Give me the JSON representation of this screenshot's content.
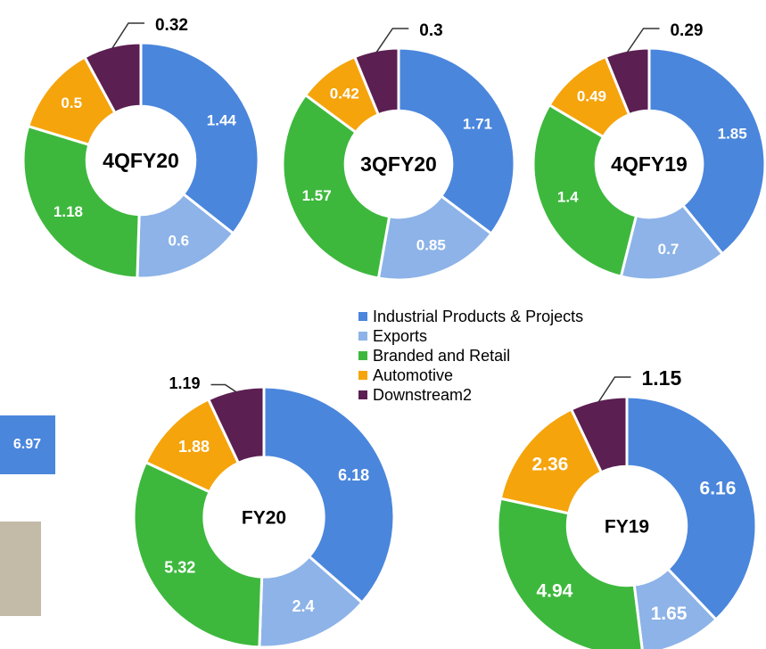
{
  "chart_data": [
    {
      "type": "pie",
      "title": "4QFY20",
      "categories": [
        "Industrial Products & Projects",
        "Exports",
        "Branded and Retail",
        "Automotive",
        "Downstream2"
      ],
      "values": [
        1.44,
        0.6,
        1.18,
        0.5,
        0.32
      ],
      "colors": [
        "#4a86dc",
        "#8db3e8",
        "#3db83d",
        "#f5a40c",
        "#5b1f52"
      ]
    },
    {
      "type": "pie",
      "title": "3QFY20",
      "categories": [
        "Industrial Products & Projects",
        "Exports",
        "Branded and Retail",
        "Automotive",
        "Downstream2"
      ],
      "values": [
        1.71,
        0.85,
        1.57,
        0.42,
        0.3
      ],
      "colors": [
        "#4a86dc",
        "#8db3e8",
        "#3db83d",
        "#f5a40c",
        "#5b1f52"
      ]
    },
    {
      "type": "pie",
      "title": "4QFY19",
      "categories": [
        "Industrial Products & Projects",
        "Exports",
        "Branded and Retail",
        "Automotive",
        "Downstream2"
      ],
      "values": [
        1.85,
        0.7,
        1.4,
        0.49,
        0.29
      ],
      "colors": [
        "#4a86dc",
        "#8db3e8",
        "#3db83d",
        "#f5a40c",
        "#5b1f52"
      ]
    },
    {
      "type": "pie",
      "title": "FY20",
      "categories": [
        "Industrial Products & Projects",
        "Exports",
        "Branded and Retail",
        "Automotive",
        "Downstream2"
      ],
      "values": [
        6.18,
        2.4,
        5.32,
        1.88,
        1.19
      ],
      "colors": [
        "#4a86dc",
        "#8db3e8",
        "#3db83d",
        "#f5a40c",
        "#5b1f52"
      ]
    },
    {
      "type": "pie",
      "title": "FY19",
      "categories": [
        "Industrial Products & Projects",
        "Exports",
        "Branded and Retail",
        "Automotive",
        "Downstream2"
      ],
      "values": [
        6.16,
        1.65,
        4.94,
        2.36,
        1.15
      ],
      "colors": [
        "#4a86dc",
        "#8db3e8",
        "#3db83d",
        "#f5a40c",
        "#5b1f52"
      ]
    }
  ],
  "callout": "6.97"
}
